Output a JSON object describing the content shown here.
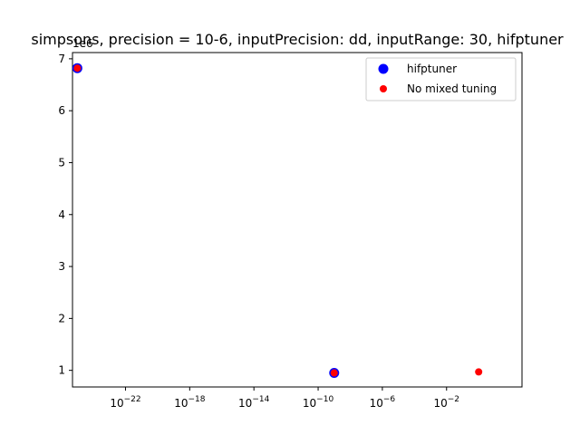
{
  "chart_data": {
    "type": "scatter",
    "title": "simpsons, precision = 10-6, inputPrecision: dd, inputRange: 30, hifptuner",
    "xlabel": "",
    "ylabel": "",
    "x_scale": "log",
    "y_offset_label": "1e6",
    "x_range": [
      "5e-26",
      "5e2"
    ],
    "ylim": [
      0.68,
      7.12
    ],
    "grid": false,
    "legend_position": "top-right",
    "x_ticks": [
      {
        "exp": -22,
        "base": "10",
        "sup": "−22"
      },
      {
        "exp": -18,
        "base": "10",
        "sup": "−18"
      },
      {
        "exp": -14,
        "base": "10",
        "sup": "−14"
      },
      {
        "exp": -10,
        "base": "10",
        "sup": "−10"
      },
      {
        "exp": -6,
        "base": "10",
        "sup": "−6"
      },
      {
        "exp": -2,
        "base": "10",
        "sup": "−2"
      }
    ],
    "y_ticks": [
      1,
      2,
      3,
      4,
      5,
      6,
      7
    ],
    "series": [
      {
        "name": "hifptuner",
        "color": "#0000ff",
        "marker_size": "large",
        "points": [
          {
            "x": "1e-25",
            "y": 6.82
          },
          {
            "x": "1e-9",
            "y": 0.95
          }
        ]
      },
      {
        "name": "No mixed tuning",
        "color": "#ff0000",
        "marker_size": "small",
        "points": [
          {
            "x": "1e-25",
            "y": 6.82
          },
          {
            "x": "1e-9",
            "y": 0.95
          },
          {
            "x": "1e0",
            "y": 0.97
          }
        ]
      }
    ]
  }
}
